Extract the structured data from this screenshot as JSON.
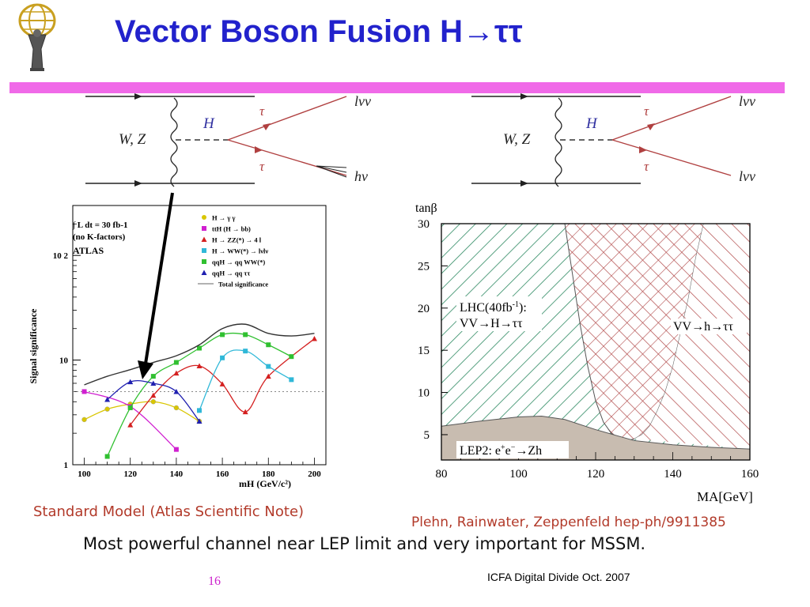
{
  "slide": {
    "title": "Vector Boson Fusion H→ττ",
    "caption_left": "Standard Model (Atlas Scientific Note)",
    "caption_right": "Plehn, Rainwater, Zeppenfeld hep-ph/9911385",
    "summary": "Most powerful channel near LEP limit and very important for MSSM.",
    "page_number": "16",
    "footer": "ICFA Digital Divide Oct. 2007",
    "accent_bar_color": "#f06ae8",
    "title_color": "#2222cc"
  },
  "diagrams": [
    {
      "boson_label": "W, Z",
      "higgs_label": "H",
      "tau_top": "τ",
      "tau_bottom": "τ",
      "out_top": "lνν",
      "out_bottom": "hν"
    },
    {
      "boson_label": "W, Z",
      "higgs_label": "H",
      "tau_top": "τ",
      "tau_bottom": "τ",
      "out_top": "lνν",
      "out_bottom": "lνν"
    }
  ],
  "chart_data": [
    {
      "type": "line",
      "ylabel": "Signal significance",
      "xlabel": "mH (GeV/c²)",
      "y_scale": "log",
      "xlim": [
        95,
        205
      ],
      "ylim": [
        1,
        300
      ],
      "x_ticks": [
        "100",
        "120",
        "140",
        "160",
        "180",
        "200"
      ],
      "y_ticks": [
        {
          "value": 1,
          "label": "1"
        },
        {
          "value": 10,
          "label": "10"
        },
        {
          "value": 100,
          "label": "10 2"
        }
      ],
      "annotation_lines": [
        "∫ L dt = 30 fb-1",
        "(no K-factors)",
        "ATLAS"
      ],
      "reference_line": 5,
      "series": [
        {
          "name": "H → γ γ",
          "color": "#d9c600",
          "marker": "circle",
          "x": [
            100,
            110,
            120,
            130,
            140,
            150
          ],
          "y": [
            2.7,
            3.4,
            3.8,
            4.0,
            3.5,
            2.6
          ]
        },
        {
          "name": "ttH (H → bb)",
          "color": "#d020d0",
          "marker": "square",
          "x": [
            100,
            120,
            140
          ],
          "y": [
            5.0,
            3.6,
            1.4
          ]
        },
        {
          "name": "H → ZZ(*) → 4 l",
          "color": "#d42020",
          "marker": "triangle",
          "x": [
            120,
            130,
            140,
            150,
            160,
            170,
            180,
            200
          ],
          "y": [
            2.4,
            4.6,
            7.5,
            8.8,
            5.9,
            3.2,
            7.0,
            16.0
          ]
        },
        {
          "name": "H → WW(*) → lνlν",
          "color": "#30b8d8",
          "marker": "square",
          "x": [
            150,
            160,
            170,
            180,
            190
          ],
          "y": [
            3.3,
            10.5,
            12.2,
            8.7,
            6.5
          ]
        },
        {
          "name": "qqH → qq WW(*)",
          "color": "#30c030",
          "marker": "square",
          "x": [
            110,
            120,
            130,
            140,
            150,
            160,
            170,
            180,
            190
          ],
          "y": [
            1.2,
            3.5,
            7.0,
            9.5,
            13.0,
            17.5,
            17.5,
            14.0,
            10.8
          ]
        },
        {
          "name": "qqH → qq ττ",
          "color": "#2020b0",
          "marker": "triangle",
          "x": [
            110,
            120,
            130,
            140,
            150
          ],
          "y": [
            4.2,
            6.2,
            6.0,
            5.0,
            2.6
          ]
        },
        {
          "name": "Total significance",
          "color": "#333333",
          "marker": "none",
          "x": [
            100,
            110,
            120,
            130,
            140,
            150,
            160,
            170,
            180,
            190,
            200
          ],
          "y": [
            5.8,
            7.0,
            8.1,
            9.5,
            11.0,
            14.0,
            20.0,
            22.0,
            18.0,
            17.0,
            18.0
          ]
        }
      ]
    },
    {
      "type": "area",
      "xlabel": "MA[GeV]",
      "ylabel": "tanβ",
      "xlim": [
        80,
        160
      ],
      "ylim": [
        2,
        30
      ],
      "x_ticks": [
        "80",
        "100",
        "120",
        "140",
        "160"
      ],
      "y_ticks": [
        "5",
        "10",
        "15",
        "20",
        "25",
        "30"
      ],
      "regions": [
        {
          "name": "LHC(40fb-1): VV→H→ττ",
          "line1": "LHC(40fb",
          "sup": "-1",
          "line1_end": "):",
          "line2": "VV→H→ττ",
          "color": "#2e8a62"
        },
        {
          "name": "VV→h→ττ",
          "color": "#b04848"
        },
        {
          "name": "LEP2: e+e-→Zh",
          "line1": "LEP2: e",
          "sup1": "+",
          "mid": "e",
          "sup2": "−",
          "line1_end": "→Zh",
          "color": "#c8bcb0"
        }
      ],
      "lep_boundary": {
        "x": [
          80,
          90,
          100,
          106,
          112,
          120,
          130,
          140,
          150,
          160
        ],
        "y": [
          6.0,
          6.6,
          7.1,
          7.2,
          6.8,
          5.6,
          4.3,
          3.8,
          3.5,
          3.3
        ]
      },
      "h_region_boundary_left": {
        "x": [
          112,
          114,
          116,
          118,
          120,
          122,
          124,
          126,
          128
        ],
        "y": [
          30,
          24,
          18,
          13,
          9,
          6.5,
          5.2,
          4.6,
          4.3
        ]
      },
      "h_region_boundary_right": {
        "x": [
          148,
          146,
          144,
          142,
          140,
          138,
          136,
          134,
          132,
          130
        ],
        "y": [
          30,
          26,
          21,
          17,
          13,
          10,
          7.8,
          6.0,
          5.0,
          4.5
        ]
      }
    }
  ]
}
